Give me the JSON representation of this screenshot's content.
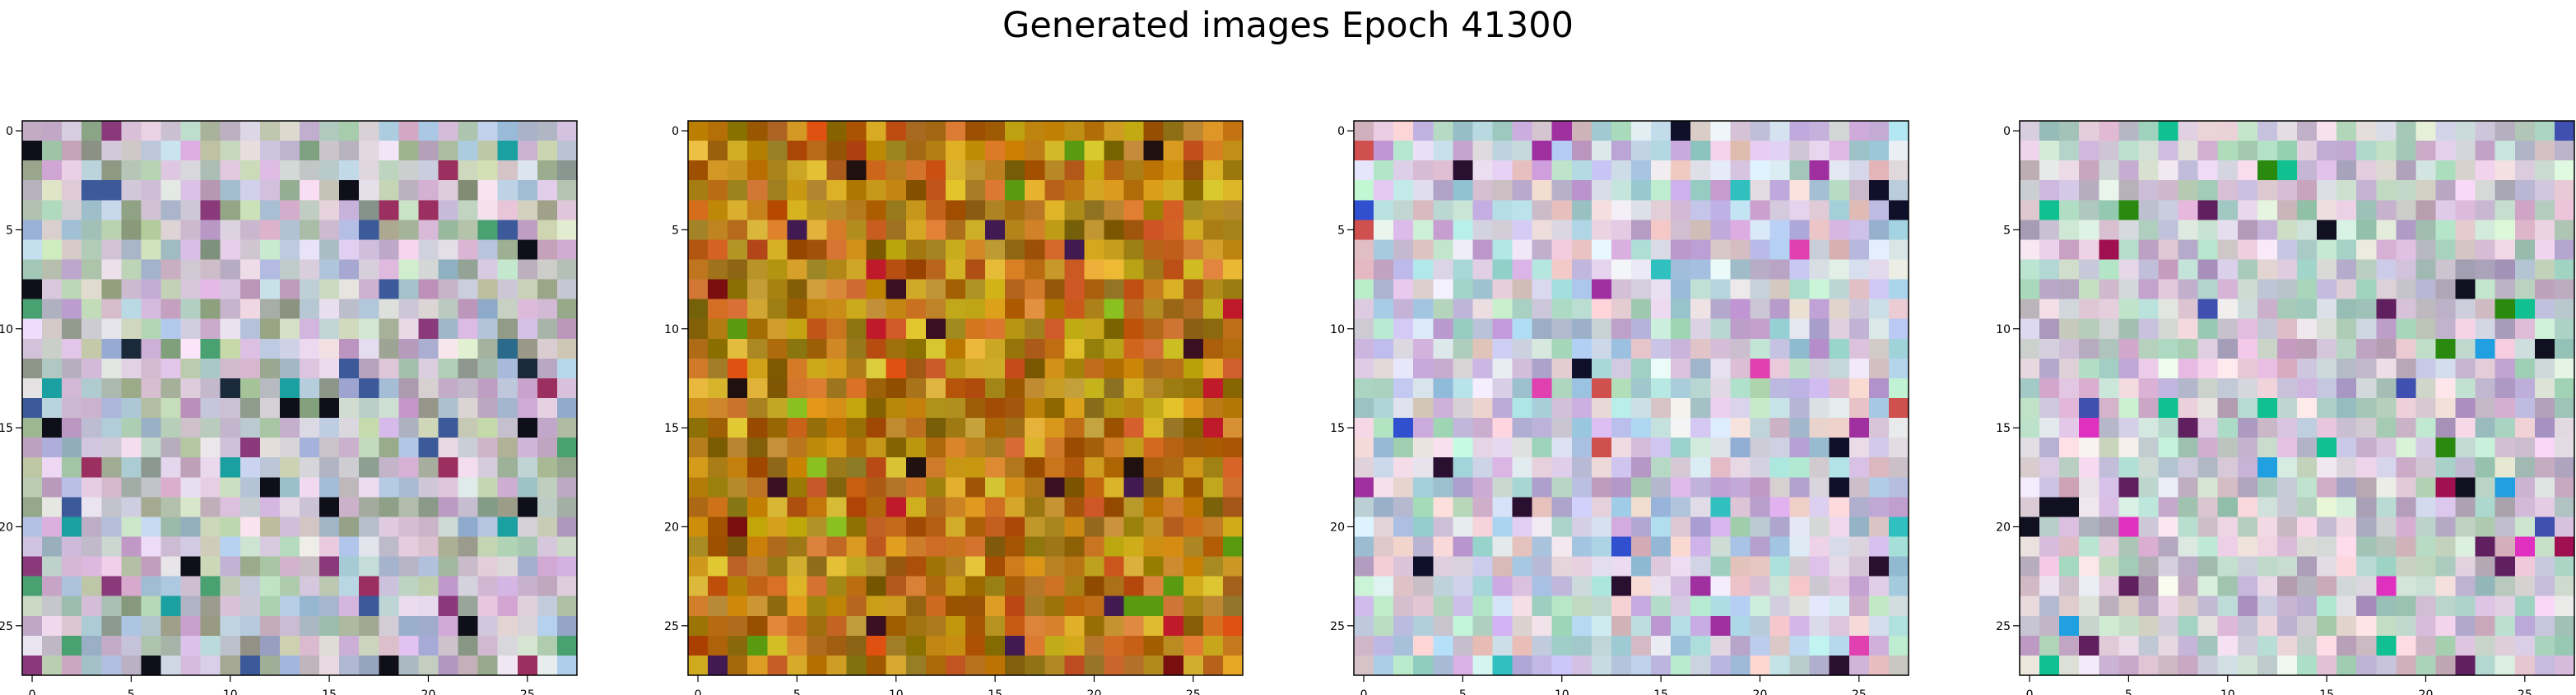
{
  "title": "Generated images Epoch 41300",
  "chart_data": [
    {
      "type": "heatmap",
      "grid_size": [
        28,
        28
      ],
      "xticks": [
        0,
        5,
        10,
        15,
        20,
        25
      ],
      "yticks": [
        0,
        5,
        10,
        15,
        20,
        25
      ],
      "xlim": [
        -0.5,
        27.5
      ],
      "ylim": [
        27.5,
        -0.5
      ],
      "palette": [
        "#c9c1cf",
        "#b9d2bd",
        "#cfb6d6",
        "#d9d6de",
        "#a9b9d6",
        "#c8d4b7",
        "#e2cfe0",
        "#9aa890",
        "#c7a9c9",
        "#b4c8d8"
      ],
      "accent_colors": [
        "#1a2a3a",
        "#2b6a8a",
        "#9b2f5f",
        "#3c5a9a",
        "#0f0f1a",
        "#49a070",
        "#8a3a7a",
        "#1aa0a0"
      ],
      "seed": 17
    },
    {
      "type": "heatmap",
      "grid_size": [
        28,
        28
      ],
      "xticks": [
        0,
        5,
        10,
        15,
        20,
        25
      ],
      "yticks": [
        0,
        5,
        10,
        15,
        20,
        25
      ],
      "xlim": [
        -0.5,
        27.5
      ],
      "ylim": [
        27.5,
        -0.5
      ],
      "palette": [
        "#c88a10",
        "#b36a12",
        "#d6a526",
        "#9e7a10",
        "#c4581c",
        "#b98a2a",
        "#a85c10",
        "#cfb022",
        "#8c6a14",
        "#d47a2a"
      ],
      "accent_colors": [
        "#7a0f10",
        "#3a1020",
        "#5a9a10",
        "#c01a2a",
        "#201010",
        "#e05010",
        "#401a50",
        "#8ac020"
      ],
      "seed": 53
    },
    {
      "type": "heatmap",
      "grid_size": [
        28,
        28
      ],
      "xticks": [
        0,
        5,
        10,
        15,
        20,
        25
      ],
      "yticks": [
        0,
        5,
        10,
        15,
        20,
        25
      ],
      "xlim": [
        -0.5,
        27.5
      ],
      "ylim": [
        27.5,
        -0.5
      ],
      "palette": [
        "#d8c8e0",
        "#a8d8d8",
        "#e0d0d8",
        "#c0b8e0",
        "#b8e0c8",
        "#e8c8c8",
        "#d0e0e8",
        "#c8a8d8",
        "#e0e0e8",
        "#a8c8e0"
      ],
      "accent_colors": [
        "#10102a",
        "#e040b0",
        "#3050d0",
        "#102a10",
        "#30c0c0",
        "#a030a0",
        "#d05050",
        "#2a1030"
      ],
      "seed": 91
    },
    {
      "type": "heatmap",
      "grid_size": [
        28,
        28
      ],
      "xticks": [
        0,
        5,
        10,
        15,
        20,
        25
      ],
      "yticks": [
        0,
        5,
        10,
        15,
        20,
        25
      ],
      "xlim": [
        -0.5,
        27.5
      ],
      "ylim": [
        27.5,
        -0.5
      ],
      "palette": [
        "#d8b8d0",
        "#b8d8c8",
        "#e0c8e0",
        "#c8c8d8",
        "#a8d0c0",
        "#e8d0d8",
        "#c0b0c8",
        "#d0e0d0",
        "#b8a8c8",
        "#e0e0e0"
      ],
      "accent_colors": [
        "#101020",
        "#e030c0",
        "#2a8a10",
        "#20a0e0",
        "#a01050",
        "#4050b0",
        "#10c090",
        "#602060"
      ],
      "seed": 133
    }
  ]
}
